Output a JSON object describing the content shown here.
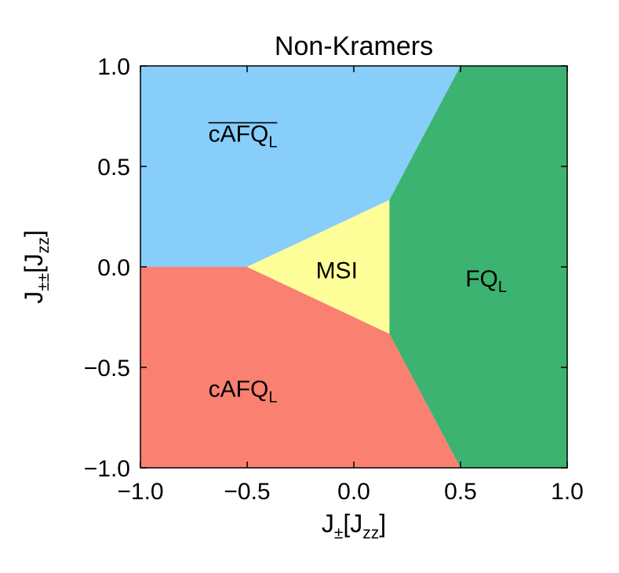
{
  "chart_data": {
    "type": "phase-diagram",
    "title": "Non-Kramers",
    "xlabel": {
      "main": "J",
      "sub": "±",
      "bracket_main": "J",
      "bracket_sub": "zz"
    },
    "ylabel": {
      "main": "J",
      "sub": "±±",
      "bracket_main": "J",
      "bracket_sub": "zz"
    },
    "xlim": [
      -1.0,
      1.0
    ],
    "ylim": [
      -1.0,
      1.0
    ],
    "xticks": [
      -1.0,
      -0.5,
      0.0,
      0.5,
      1.0
    ],
    "yticks": [
      -1.0,
      -0.5,
      0.0,
      0.5,
      1.0
    ],
    "xtick_labels": [
      "−1.0",
      "−0.5",
      "0.0",
      "0.5",
      "1.0"
    ],
    "ytick_labels": [
      "−1.0",
      "−0.5",
      "0.0",
      "0.5",
      "1.0"
    ],
    "grid": false,
    "regions": [
      {
        "label_main": "cAFQ",
        "label_sub": "L",
        "overline": true,
        "color": "#87cefa",
        "polygon": [
          [
            -1.0,
            0.0
          ],
          [
            -0.5,
            0.0
          ],
          [
            0.167,
            0.333
          ],
          [
            0.5,
            1.0
          ],
          [
            -1.0,
            1.0
          ]
        ],
        "label_at": [
          -0.52,
          0.67
        ]
      },
      {
        "label_main": "cAFQ",
        "label_sub": "L",
        "overline": false,
        "color": "#fa8072",
        "polygon": [
          [
            -1.0,
            0.0
          ],
          [
            -0.5,
            0.0
          ],
          [
            0.167,
            -0.333
          ],
          [
            0.5,
            -1.0
          ],
          [
            -1.0,
            -1.0
          ]
        ],
        "label_at": [
          -0.52,
          -0.6
        ]
      },
      {
        "label_main": "MSI",
        "label_sub": "",
        "overline": false,
        "color": "#ffff99",
        "polygon": [
          [
            -0.5,
            0.0
          ],
          [
            0.167,
            0.333
          ],
          [
            0.167,
            -0.333
          ]
        ],
        "label_at": [
          -0.08,
          -0.01
        ]
      },
      {
        "label_main": "FQ",
        "label_sub": "L",
        "overline": false,
        "color": "#3cb371",
        "polygon": [
          [
            0.5,
            1.0
          ],
          [
            1.0,
            1.0
          ],
          [
            1.0,
            -1.0
          ],
          [
            0.5,
            -1.0
          ],
          [
            0.167,
            -0.333
          ],
          [
            0.167,
            0.333
          ]
        ],
        "label_at": [
          0.62,
          -0.05
        ]
      }
    ]
  }
}
